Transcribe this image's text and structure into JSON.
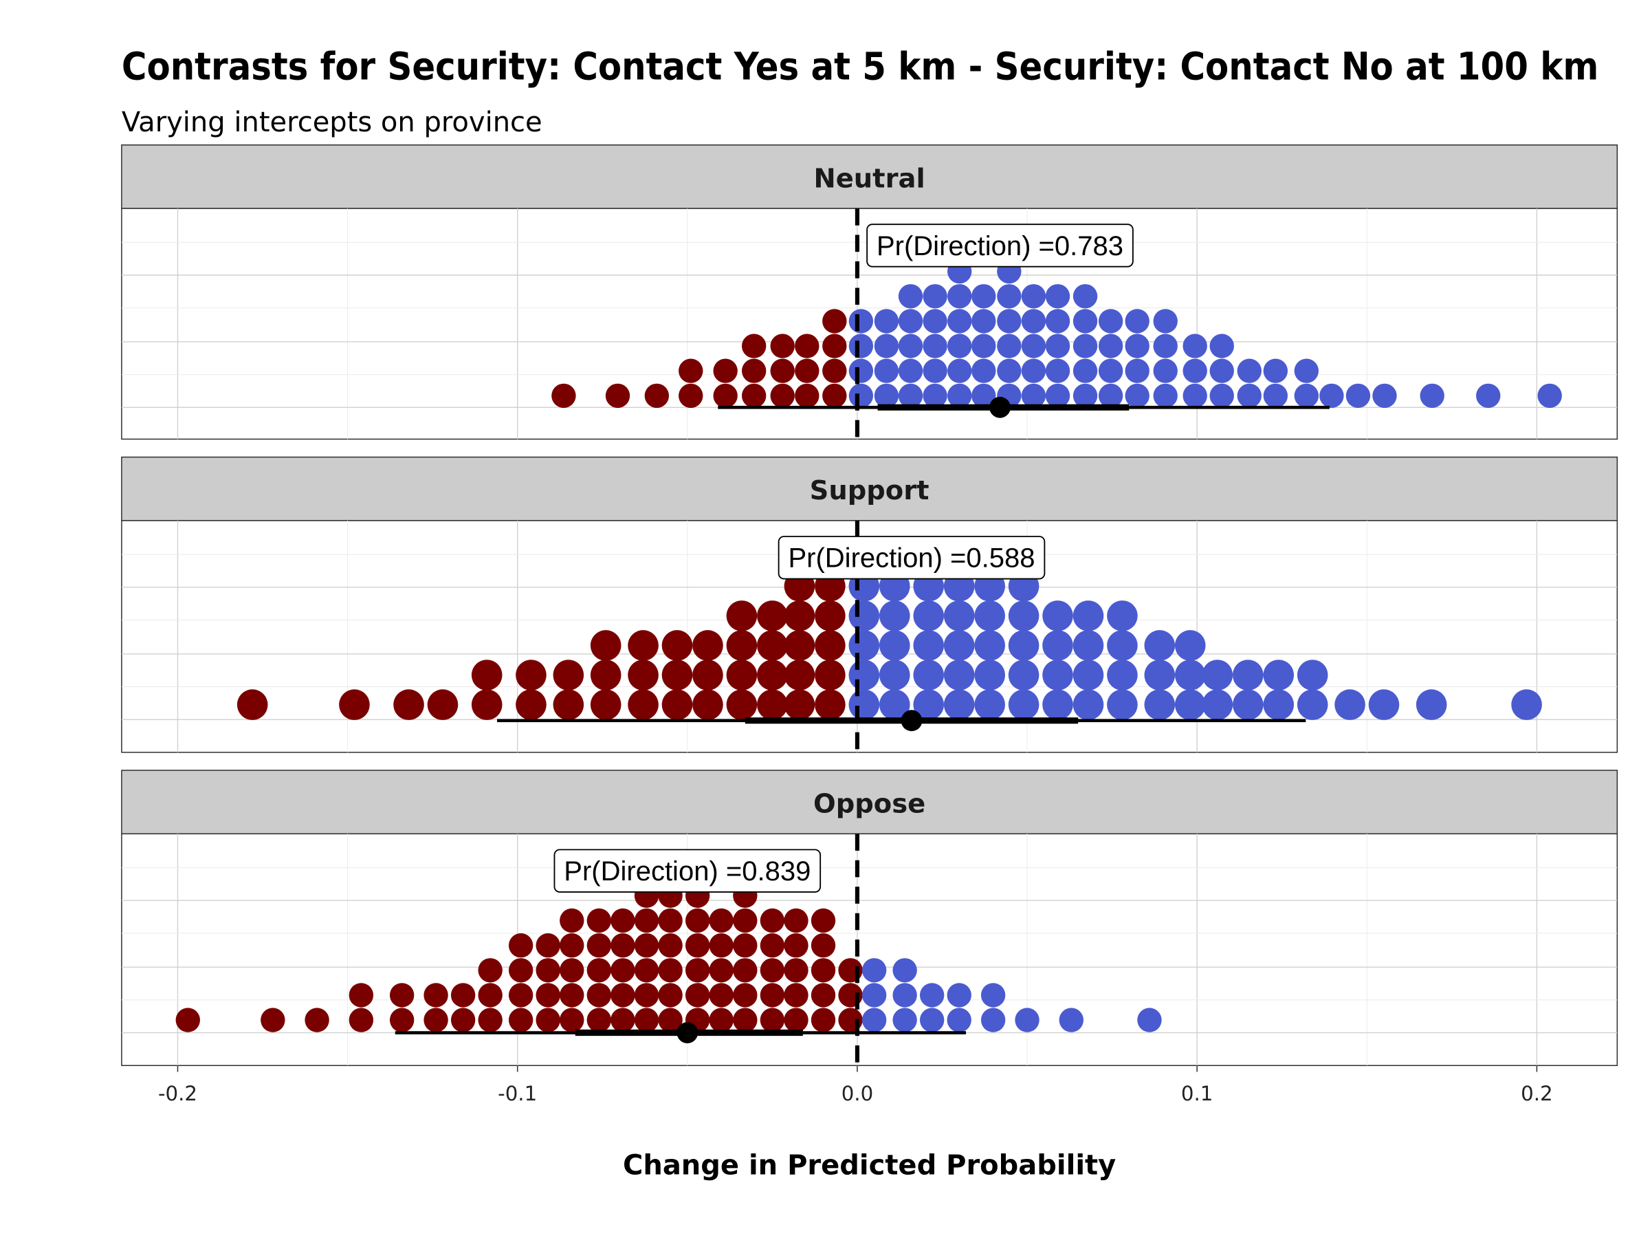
{
  "chart_data": {
    "type": "dotplot",
    "title": "Contrasts for Security: Contact Yes at 5 km - Security: Contact No at 100 km",
    "subtitle": "Varying intercepts on province",
    "xlabel": "Change in Predicted Probability",
    "xlim": [
      -0.22,
      0.22
    ],
    "xticks": [
      -0.2,
      -0.1,
      0.0,
      0.1,
      0.2
    ],
    "xtick_labels": [
      "-0.2",
      "-0.1",
      "0.0",
      "0.1",
      "0.2"
    ],
    "reference_line": 0,
    "colors": {
      "negative": "#7a0000",
      "positive": "#4a5bd0",
      "interval": "#000000"
    },
    "panels": [
      {
        "name": "Neutral",
        "label": "Pr(Direction) =0.783",
        "label_x": 0.042,
        "point": 0.042,
        "interval_inner": [
          0.006,
          0.08
        ],
        "interval_outer": [
          -0.041,
          0.139
        ],
        "columns": [
          {
            "x": -0.0864,
            "n": 1
          },
          {
            "x": -0.0705,
            "n": 1
          },
          {
            "x": -0.059,
            "n": 1
          },
          {
            "x": -0.049,
            "n": 2
          },
          {
            "x": -0.0388,
            "n": 2
          },
          {
            "x": -0.0304,
            "n": 3
          },
          {
            "x": -0.022,
            "n": 3
          },
          {
            "x": -0.0148,
            "n": 3
          },
          {
            "x": -0.0067,
            "n": 4
          },
          {
            "x": 0.0011,
            "n": 4
          },
          {
            "x": 0.0086,
            "n": 4
          },
          {
            "x": 0.0157,
            "n": 5
          },
          {
            "x": 0.0229,
            "n": 5
          },
          {
            "x": 0.0301,
            "n": 6
          },
          {
            "x": 0.0372,
            "n": 5
          },
          {
            "x": 0.0447,
            "n": 6
          },
          {
            "x": 0.0519,
            "n": 5
          },
          {
            "x": 0.059,
            "n": 5
          },
          {
            "x": 0.0671,
            "n": 5
          },
          {
            "x": 0.0746,
            "n": 4
          },
          {
            "x": 0.0824,
            "n": 4
          },
          {
            "x": 0.0907,
            "n": 4
          },
          {
            "x": 0.0994,
            "n": 3
          },
          {
            "x": 0.1073,
            "n": 3
          },
          {
            "x": 0.1154,
            "n": 2
          },
          {
            "x": 0.1231,
            "n": 2
          },
          {
            "x": 0.1322,
            "n": 2
          },
          {
            "x": 0.1396,
            "n": 1
          },
          {
            "x": 0.1474,
            "n": 1
          },
          {
            "x": 0.1552,
            "n": 1
          },
          {
            "x": 0.1692,
            "n": 1
          },
          {
            "x": 0.1857,
            "n": 1
          },
          {
            "x": 0.2038,
            "n": 1
          }
        ]
      },
      {
        "name": "Support",
        "label": "Pr(Direction) =0.588",
        "label_x": 0.016,
        "point": 0.016,
        "interval_inner": [
          -0.033,
          0.065
        ],
        "interval_outer": [
          -0.106,
          0.132
        ],
        "columns": [
          {
            "x": -0.178,
            "n": 1
          },
          {
            "x": -0.148,
            "n": 1
          },
          {
            "x": -0.132,
            "n": 1
          },
          {
            "x": -0.122,
            "n": 1
          },
          {
            "x": -0.109,
            "n": 2
          },
          {
            "x": -0.096,
            "n": 2
          },
          {
            "x": -0.085,
            "n": 2
          },
          {
            "x": -0.074,
            "n": 3
          },
          {
            "x": -0.063,
            "n": 3
          },
          {
            "x": -0.053,
            "n": 3
          },
          {
            "x": -0.044,
            "n": 3
          },
          {
            "x": -0.034,
            "n": 4
          },
          {
            "x": -0.025,
            "n": 4
          },
          {
            "x": -0.017,
            "n": 5
          },
          {
            "x": -0.008,
            "n": 5
          },
          {
            "x": 0.002,
            "n": 5
          },
          {
            "x": 0.011,
            "n": 5
          },
          {
            "x": 0.021,
            "n": 5
          },
          {
            "x": 0.03,
            "n": 5
          },
          {
            "x": 0.039,
            "n": 5
          },
          {
            "x": 0.049,
            "n": 5
          },
          {
            "x": 0.059,
            "n": 4
          },
          {
            "x": 0.068,
            "n": 4
          },
          {
            "x": 0.078,
            "n": 4
          },
          {
            "x": 0.089,
            "n": 3
          },
          {
            "x": 0.098,
            "n": 3
          },
          {
            "x": 0.106,
            "n": 2
          },
          {
            "x": 0.115,
            "n": 2
          },
          {
            "x": 0.124,
            "n": 2
          },
          {
            "x": 0.134,
            "n": 2
          },
          {
            "x": 0.145,
            "n": 1
          },
          {
            "x": 0.155,
            "n": 1
          },
          {
            "x": 0.169,
            "n": 1
          },
          {
            "x": 0.197,
            "n": 1
          }
        ]
      },
      {
        "name": "Oppose",
        "label": "Pr(Direction) =0.839",
        "label_x": -0.05,
        "point": -0.05,
        "interval_inner": [
          -0.083,
          -0.016
        ],
        "interval_outer": [
          -0.136,
          0.032
        ],
        "columns": [
          {
            "x": -0.197,
            "n": 1
          },
          {
            "x": -0.172,
            "n": 1
          },
          {
            "x": -0.159,
            "n": 1
          },
          {
            "x": -0.146,
            "n": 2
          },
          {
            "x": -0.134,
            "n": 2
          },
          {
            "x": -0.124,
            "n": 2
          },
          {
            "x": -0.116,
            "n": 2
          },
          {
            "x": -0.108,
            "n": 3
          },
          {
            "x": -0.099,
            "n": 4
          },
          {
            "x": -0.091,
            "n": 4
          },
          {
            "x": -0.084,
            "n": 5
          },
          {
            "x": -0.076,
            "n": 5
          },
          {
            "x": -0.069,
            "n": 5
          },
          {
            "x": -0.062,
            "n": 6
          },
          {
            "x": -0.055,
            "n": 6
          },
          {
            "x": -0.047,
            "n": 6
          },
          {
            "x": -0.04,
            "n": 5
          },
          {
            "x": -0.033,
            "n": 6
          },
          {
            "x": -0.025,
            "n": 5
          },
          {
            "x": -0.018,
            "n": 5
          },
          {
            "x": -0.01,
            "n": 5
          },
          {
            "x": -0.002,
            "n": 3
          },
          {
            "x": 0.005,
            "n": 3
          },
          {
            "x": 0.014,
            "n": 3
          },
          {
            "x": 0.022,
            "n": 2
          },
          {
            "x": 0.03,
            "n": 2
          },
          {
            "x": 0.04,
            "n": 2
          },
          {
            "x": 0.05,
            "n": 1
          },
          {
            "x": 0.063,
            "n": 1
          },
          {
            "x": 0.086,
            "n": 1
          }
        ]
      }
    ]
  }
}
